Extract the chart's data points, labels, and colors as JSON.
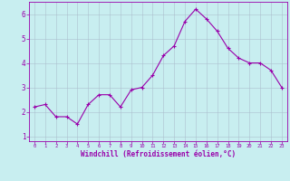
{
  "x": [
    0,
    1,
    2,
    3,
    4,
    5,
    6,
    7,
    8,
    9,
    10,
    11,
    12,
    13,
    14,
    15,
    16,
    17,
    18,
    19,
    20,
    21,
    22,
    23
  ],
  "y": [
    2.2,
    2.3,
    1.8,
    1.8,
    1.5,
    2.3,
    2.7,
    2.7,
    2.2,
    2.9,
    3.0,
    3.5,
    4.3,
    4.7,
    5.7,
    6.2,
    5.8,
    5.3,
    4.6,
    4.2,
    4.0,
    4.0,
    3.7,
    3.0
  ],
  "line_color": "#9900aa",
  "marker": "+",
  "bg_color": "#c8eef0",
  "grid_color": "#aabbcc",
  "xlabel": "Windchill (Refroidissement éolien,°C)",
  "xlabel_color": "#9900aa",
  "tick_color": "#9900aa",
  "ylim": [
    0.8,
    6.5
  ],
  "xlim": [
    -0.5,
    23.5
  ],
  "yticks": [
    1,
    2,
    3,
    4,
    5,
    6
  ],
  "xticks": [
    0,
    1,
    2,
    3,
    4,
    5,
    6,
    7,
    8,
    9,
    10,
    11,
    12,
    13,
    14,
    15,
    16,
    17,
    18,
    19,
    20,
    21,
    22,
    23
  ],
  "spine_color": "#9900aa",
  "figsize": [
    3.2,
    2.0
  ],
  "dpi": 100
}
